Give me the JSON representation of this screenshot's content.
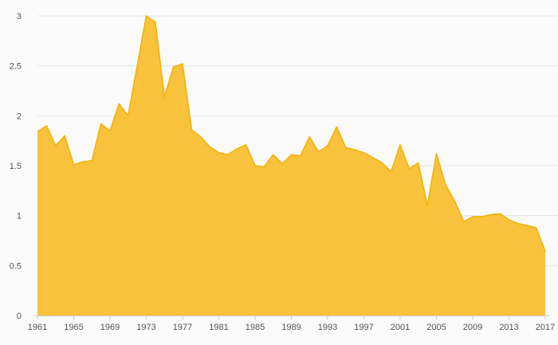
{
  "colors": {
    "fill": "#f9c23c",
    "stroke": "#f2b30a",
    "grid": "#e6e6e6",
    "background": "#fafafa"
  },
  "chart_data": {
    "type": "area",
    "title": "",
    "xlabel": "",
    "ylabel": "",
    "grid": true,
    "legend": "none",
    "xlim": [
      1961,
      2017
    ],
    "ylim": [
      0,
      3
    ],
    "y_ticks": [
      "0",
      "0.5",
      "1",
      "1.5",
      "2",
      "2.5",
      "3"
    ],
    "x_ticks": [
      "1961",
      "1965",
      "1969",
      "1973",
      "1977",
      "1981",
      "1985",
      "1989",
      "1993",
      "1997",
      "2001",
      "2005",
      "2009",
      "2013",
      "2017"
    ],
    "x": [
      1961,
      1962,
      1963,
      1964,
      1965,
      1966,
      1967,
      1968,
      1969,
      1970,
      1971,
      1972,
      1973,
      1974,
      1975,
      1976,
      1977,
      1978,
      1979,
      1980,
      1981,
      1982,
      1983,
      1984,
      1985,
      1986,
      1987,
      1988,
      1989,
      1990,
      1991,
      1992,
      1993,
      1994,
      1995,
      1996,
      1997,
      1998,
      1999,
      2000,
      2001,
      2002,
      2003,
      2004,
      2005,
      2006,
      2007,
      2008,
      2009,
      2010,
      2011,
      2012,
      2013,
      2014,
      2015,
      2016,
      2017
    ],
    "series": [
      {
        "values": [
          1.84,
          1.9,
          1.7,
          1.8,
          1.51,
          1.54,
          1.55,
          1.92,
          1.85,
          2.12,
          2.0,
          2.5,
          3.0,
          2.94,
          2.19,
          2.49,
          2.52,
          1.86,
          1.79,
          1.69,
          1.63,
          1.61,
          1.67,
          1.71,
          1.5,
          1.49,
          1.61,
          1.52,
          1.61,
          1.6,
          1.79,
          1.64,
          1.7,
          1.89,
          1.68,
          1.66,
          1.63,
          1.58,
          1.53,
          1.44,
          1.71,
          1.47,
          1.53,
          1.1,
          1.62,
          1.31,
          1.15,
          0.94,
          0.99,
          0.99,
          1.01,
          1.02,
          0.96,
          0.92,
          0.9,
          0.88,
          0.64
        ]
      }
    ]
  }
}
